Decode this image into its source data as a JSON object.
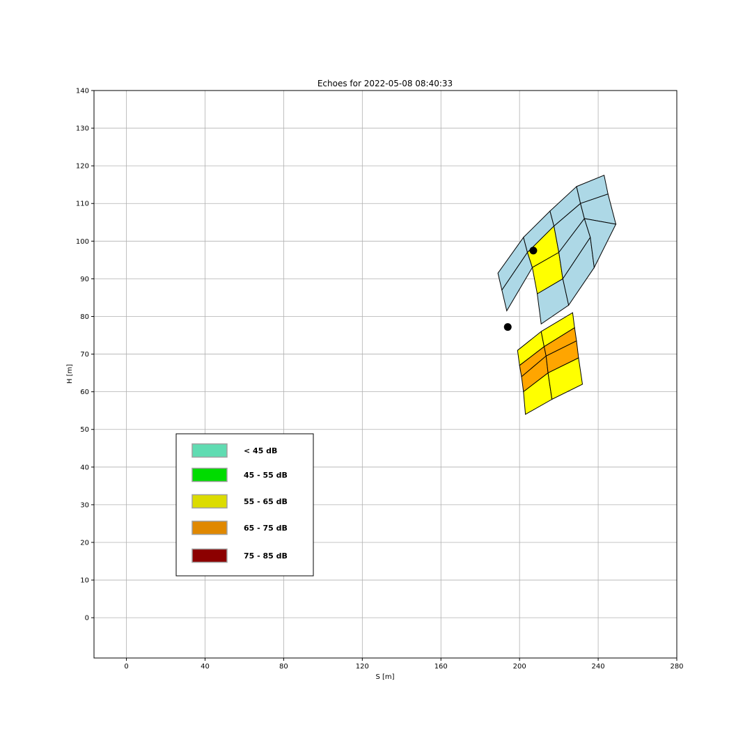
{
  "chart_data": {
    "type": "scatter",
    "title": "Echoes for 2022-05-08  08:40:33",
    "xlabel": "S [m]",
    "ylabel": "H [m]",
    "xlim": [
      -16.5,
      280
    ],
    "ylim": [
      -10.7,
      140
    ],
    "xticks": [
      0,
      40,
      80,
      120,
      160,
      200,
      240,
      280
    ],
    "yticks": [
      0,
      10,
      20,
      30,
      40,
      50,
      60,
      70,
      80,
      90,
      100,
      110,
      120,
      130,
      140
    ],
    "grid": true,
    "legend": {
      "placement": "lower-left",
      "entries": [
        {
          "label": "< 45 dB",
          "color": "#60dcb2"
        },
        {
          "label": "45 - 55 dB",
          "color": "#00dc00"
        },
        {
          "label": "55 - 65 dB",
          "color": "#dcdc00"
        },
        {
          "label": "65 - 75 dB",
          "color": "#e08800"
        },
        {
          "label": "75 - 85 dB",
          "color": "#8c0000"
        }
      ]
    },
    "points": [
      {
        "x": 207,
        "y": 97.5
      },
      {
        "x": 194,
        "y": 77.2
      }
    ],
    "cells": [
      {
        "color": "#add8e6",
        "corners": [
          [
            189,
            91.5
          ],
          [
            202,
            101
          ],
          [
            204,
            97
          ],
          [
            191,
            87
          ]
        ]
      },
      {
        "color": "#add8e6",
        "corners": [
          [
            191,
            87
          ],
          [
            204,
            97
          ],
          [
            206.5,
            93
          ],
          [
            193.5,
            81.5
          ]
        ]
      },
      {
        "color": "#add8e6",
        "corners": [
          [
            202,
            101
          ],
          [
            215.5,
            108
          ],
          [
            217.5,
            104
          ],
          [
            204,
            97
          ]
        ]
      },
      {
        "color": "#ffff00",
        "corners": [
          [
            204,
            97
          ],
          [
            217.5,
            104
          ],
          [
            220,
            97
          ],
          [
            206.5,
            93
          ]
        ]
      },
      {
        "color": "#ffff00",
        "corners": [
          [
            206.5,
            93
          ],
          [
            220,
            97
          ],
          [
            222,
            90
          ],
          [
            209,
            86
          ]
        ]
      },
      {
        "color": "#add8e6",
        "corners": [
          [
            209,
            86
          ],
          [
            222,
            90
          ],
          [
            225,
            83
          ],
          [
            211,
            78
          ]
        ]
      },
      {
        "color": "#add8e6",
        "corners": [
          [
            215.5,
            108
          ],
          [
            229,
            114.5
          ],
          [
            231,
            110
          ],
          [
            217.5,
            104
          ]
        ]
      },
      {
        "color": "#add8e6",
        "corners": [
          [
            217.5,
            104
          ],
          [
            231,
            110
          ],
          [
            233,
            106
          ],
          [
            220,
            97
          ]
        ]
      },
      {
        "color": "#add8e6",
        "corners": [
          [
            220,
            97
          ],
          [
            233,
            106
          ],
          [
            236,
            101
          ],
          [
            222,
            90
          ]
        ]
      },
      {
        "color": "#add8e6",
        "corners": [
          [
            222,
            90
          ],
          [
            236,
            101
          ],
          [
            238,
            93
          ],
          [
            225,
            83
          ]
        ]
      },
      {
        "color": "#add8e6",
        "corners": [
          [
            229,
            114.5
          ],
          [
            243,
            117.5
          ],
          [
            245,
            112.5
          ],
          [
            231,
            110
          ]
        ]
      },
      {
        "color": "#add8e6",
        "corners": [
          [
            231,
            110
          ],
          [
            245,
            112.5
          ],
          [
            249,
            104.5
          ],
          [
            233,
            106
          ]
        ]
      },
      {
        "color": "#add8e6",
        "corners": [
          [
            233,
            106
          ],
          [
            249,
            104.5
          ],
          [
            238,
            93
          ],
          [
            236,
            101
          ]
        ]
      },
      {
        "color": "#ffff00",
        "corners": [
          [
            199,
            71
          ],
          [
            211,
            76
          ],
          [
            212.5,
            72
          ],
          [
            200,
            67
          ]
        ]
      },
      {
        "color": "#ffa500",
        "corners": [
          [
            200,
            67
          ],
          [
            212.5,
            72
          ],
          [
            213.5,
            69.5
          ],
          [
            201,
            64
          ]
        ]
      },
      {
        "color": "#ffa500",
        "corners": [
          [
            201,
            64
          ],
          [
            213.5,
            69.5
          ],
          [
            214.5,
            65
          ],
          [
            202,
            60
          ]
        ]
      },
      {
        "color": "#ffff00",
        "corners": [
          [
            202,
            60
          ],
          [
            214.5,
            65
          ],
          [
            216.5,
            58
          ],
          [
            203,
            54
          ]
        ]
      },
      {
        "color": "#ffff00",
        "corners": [
          [
            211,
            76
          ],
          [
            227,
            81
          ],
          [
            228,
            77
          ],
          [
            212.5,
            72
          ]
        ]
      },
      {
        "color": "#ffa500",
        "corners": [
          [
            212.5,
            72
          ],
          [
            228,
            77
          ],
          [
            229,
            73.5
          ],
          [
            213.5,
            69.5
          ]
        ]
      },
      {
        "color": "#ffa500",
        "corners": [
          [
            213.5,
            69.5
          ],
          [
            229,
            73.5
          ],
          [
            230,
            69
          ],
          [
            214.5,
            65
          ]
        ]
      },
      {
        "color": "#ffff00",
        "corners": [
          [
            214.5,
            65
          ],
          [
            230,
            69
          ],
          [
            232,
            62
          ],
          [
            216.5,
            58
          ]
        ]
      }
    ]
  }
}
